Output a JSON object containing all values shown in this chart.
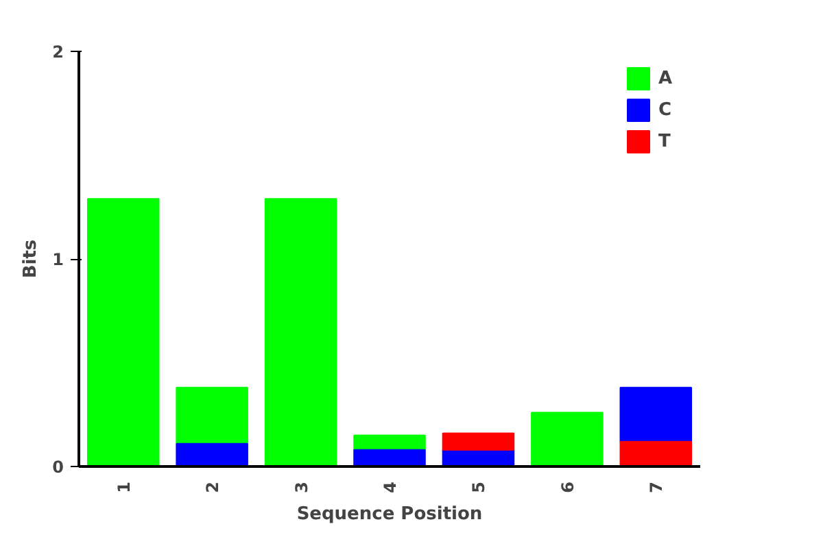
{
  "chart_data": {
    "type": "bar",
    "xlabel": "Sequence Position",
    "ylabel": "Bits",
    "categories": [
      "1",
      "2",
      "3",
      "4",
      "5",
      "6",
      "7"
    ],
    "series": [
      {
        "name": "A",
        "color": "#00ff00",
        "values": [
          1.29,
          0.27,
          1.29,
          0.07,
          null,
          0.26,
          null
        ],
        "base": [
          0,
          0.11,
          0,
          0.08,
          null,
          0,
          null
        ]
      },
      {
        "name": "C",
        "color": "#0000ff",
        "values": [
          null,
          0.11,
          null,
          0.08,
          0.08,
          null,
          0.26
        ],
        "base": [
          null,
          0,
          null,
          0,
          0,
          null,
          0.12
        ]
      },
      {
        "name": "T",
        "color": "#ff0000",
        "values": [
          null,
          null,
          null,
          null,
          0.08,
          null,
          0.12
        ],
        "base": [
          null,
          null,
          null,
          null,
          0.08,
          null,
          0
        ]
      }
    ],
    "ylim": [
      0,
      2
    ],
    "yticks": [
      0,
      1,
      2
    ],
    "grid": false,
    "legend": "top right"
  }
}
